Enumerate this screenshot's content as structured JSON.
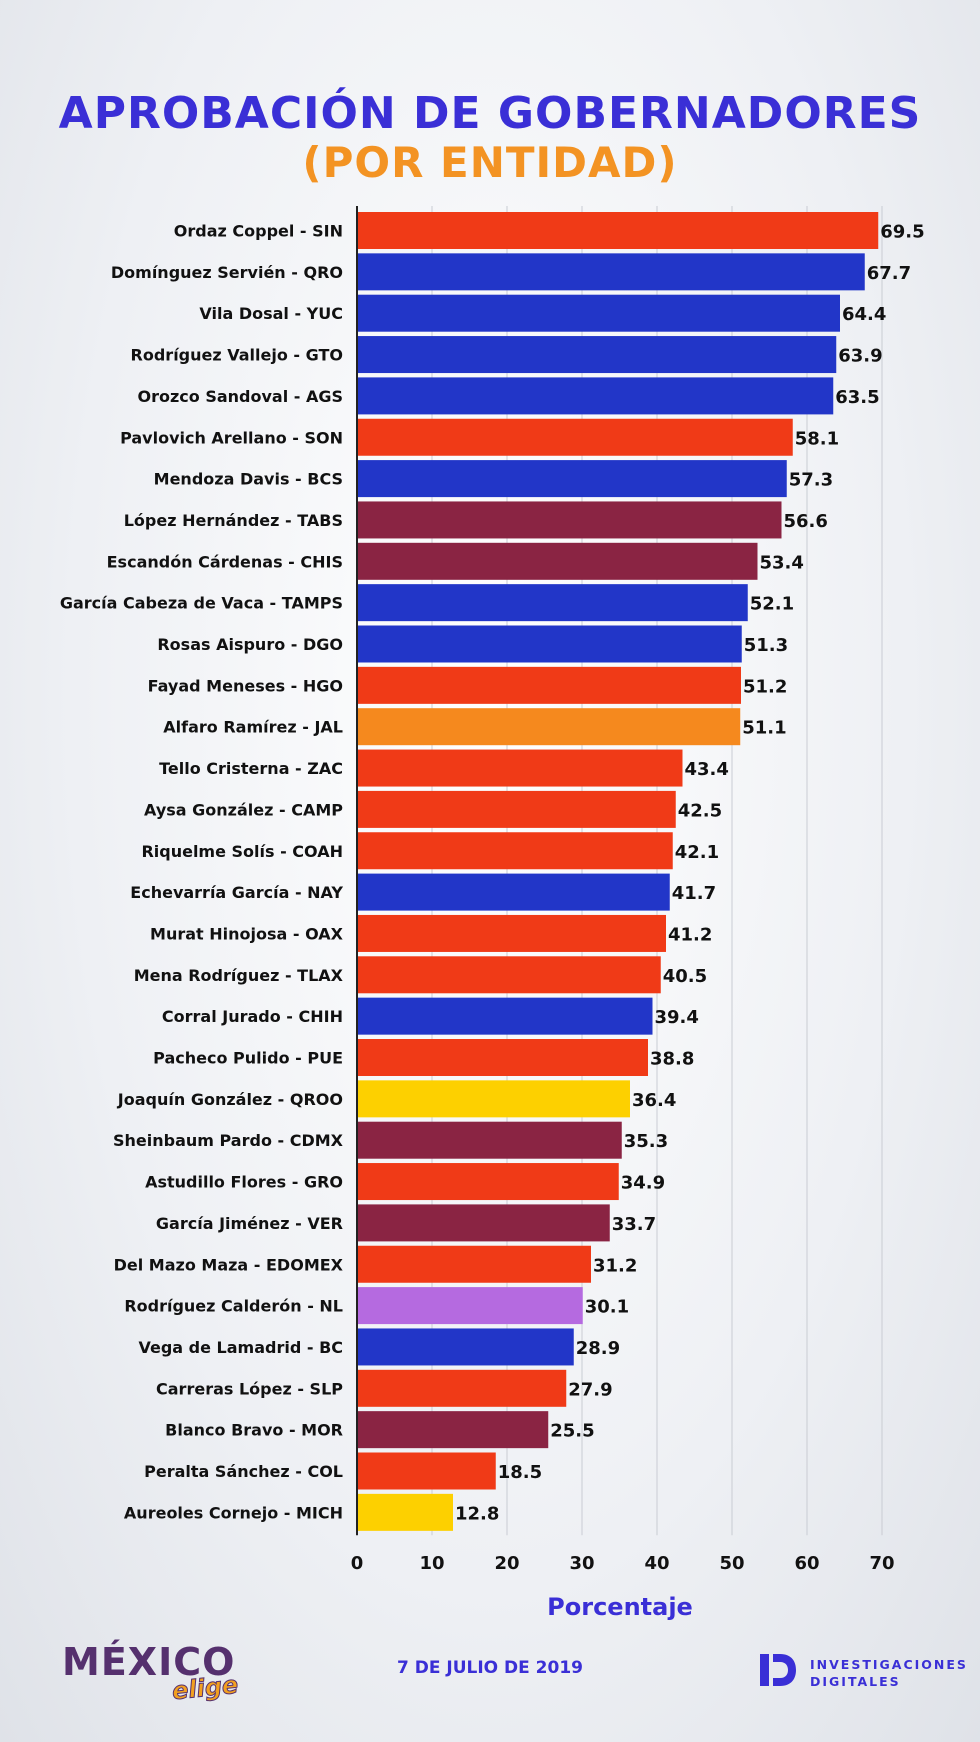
{
  "header": {
    "title": "APROBACIÓN DE GOBERNADORES",
    "subtitle": "(POR ENTIDAD)"
  },
  "colors": {
    "red": "#f03a17",
    "blue": "#2236c8",
    "maroon": "#8a2443",
    "orange": "#f5891e",
    "yellow": "#fdd000",
    "purple": "#b56ae0",
    "title_blue": "#3a2fd6",
    "title_orange": "#f39323"
  },
  "chart_data": {
    "type": "bar",
    "orientation": "horizontal",
    "xlabel": "Porcentaje",
    "xlim": [
      0,
      70
    ],
    "xticks": [
      0,
      10,
      20,
      30,
      40,
      50,
      60,
      70
    ],
    "grid": "vertical",
    "categories": [
      "Ordaz Coppel - SIN",
      "Domínguez Servién - QRO",
      "Vila Dosal - YUC",
      "Rodríguez Vallejo - GTO",
      "Orozco Sandoval - AGS",
      "Pavlovich Arellano - SON",
      "Mendoza Davis - BCS",
      "López Hernández - TABS",
      "Escandón Cárdenas - CHIS",
      "García Cabeza de Vaca - TAMPS",
      "Rosas Aispuro - DGO",
      "Fayad Meneses - HGO",
      "Alfaro Ramírez - JAL",
      "Tello Cristerna - ZAC",
      "Aysa González - CAMP",
      "Riquelme Solís - COAH",
      "Echevarría García - NAY",
      "Murat Hinojosa - OAX",
      "Mena Rodríguez - TLAX",
      "Corral Jurado - CHIH",
      "Pacheco Pulido - PUE",
      "Joaquín González - QROO",
      "Sheinbaum Pardo - CDMX",
      "Astudillo Flores - GRO",
      "García Jiménez - VER",
      "Del Mazo Maza - EDOMEX",
      "Rodríguez Calderón - NL",
      "Vega de Lamadrid - BC",
      "Carreras López - SLP",
      "Blanco Bravo - MOR",
      "Peralta Sánchez - COL",
      "Aureoles Cornejo - MICH"
    ],
    "values": [
      69.5,
      67.7,
      64.4,
      63.9,
      63.5,
      58.1,
      57.3,
      56.6,
      53.4,
      52.1,
      51.3,
      51.2,
      51.1,
      43.4,
      42.5,
      42.1,
      41.7,
      41.2,
      40.5,
      39.4,
      38.8,
      36.4,
      35.3,
      34.9,
      33.7,
      31.2,
      30.1,
      28.9,
      27.9,
      25.5,
      18.5,
      12.8
    ],
    "value_labels": [
      "69.5",
      "67.7",
      "64.4",
      "63.9",
      "63.5",
      "58.1",
      "57.3",
      "56.6",
      "53.4",
      "52.1",
      "51.3",
      "51.2",
      "51.1",
      "43.4",
      "42.5",
      "42.1",
      "41.7",
      "41.2",
      "40.5",
      "39.4",
      "38.8",
      "36.4",
      "35.3",
      "34.9",
      "33.7",
      "31.2",
      "30.1",
      "28.9",
      "27.9",
      "25.5",
      "18.5",
      "12.8"
    ],
    "bar_colors": [
      "red",
      "blue",
      "blue",
      "blue",
      "blue",
      "red",
      "blue",
      "maroon",
      "maroon",
      "blue",
      "blue",
      "red",
      "orange",
      "red",
      "red",
      "red",
      "blue",
      "red",
      "red",
      "blue",
      "red",
      "yellow",
      "maroon",
      "red",
      "maroon",
      "red",
      "purple",
      "blue",
      "red",
      "maroon",
      "red",
      "yellow"
    ]
  },
  "footer": {
    "logo_main": "MÉXICO",
    "logo_script": "elige",
    "date": "7 DE JULIO DE 2019",
    "brand_line1": "INVESTIGACIONES",
    "brand_line2": "DIGITALES"
  }
}
